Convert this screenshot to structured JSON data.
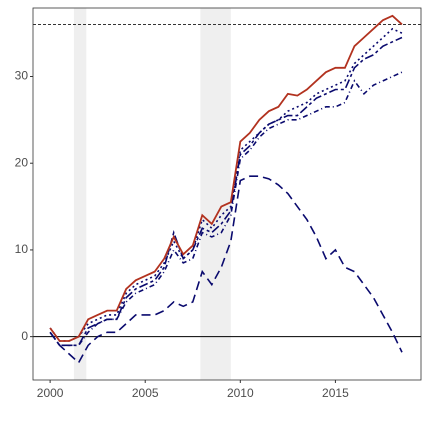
{
  "chart_data": {
    "type": "line",
    "x": [
      2000,
      2000.5,
      2001,
      2001.5,
      2002,
      2002.5,
      2003,
      2003.5,
      2004,
      2004.5,
      2005,
      2005.5,
      2006,
      2006.5,
      2007,
      2007.5,
      2008,
      2008.5,
      2009,
      2009.5,
      2010,
      2010.5,
      2011,
      2011.5,
      2012,
      2012.5,
      2013,
      2013.5,
      2014,
      2014.5,
      2015,
      2015.5,
      2016,
      2016.5,
      2017,
      2017.5,
      2018,
      2018.5
    ],
    "series": [
      {
        "color": "#b2321f",
        "dash": "none",
        "values": [
          1,
          -0.5,
          -0.5,
          0,
          2,
          2.5,
          3,
          3,
          5.5,
          6.5,
          7,
          7.5,
          9,
          11.5,
          9.5,
          10.5,
          14,
          13,
          15,
          15.5,
          22.5,
          23.5,
          25,
          26,
          26.5,
          28,
          27.8,
          28.5,
          29.5,
          30.5,
          31,
          31,
          33.5,
          34.5,
          35.5,
          36.5,
          37,
          36
        ]
      },
      {
        "color": "#0a0a6e",
        "dash": "2 3",
        "values": [
          1,
          -0.5,
          -0.5,
          0,
          1.5,
          2,
          2.5,
          2.5,
          5,
          6,
          6.5,
          7,
          8.5,
          11,
          9,
          10,
          13.5,
          12.5,
          14,
          15,
          21.5,
          22.5,
          23.5,
          24.5,
          25,
          26,
          26.5,
          27,
          28,
          28.5,
          29,
          29.5,
          31.5,
          32.5,
          33.5,
          34.5,
          35.5,
          35
        ]
      },
      {
        "color": "#0a0a6e",
        "dash": "9 3 3 3",
        "values": [
          0.5,
          -1,
          -1,
          -1,
          1,
          1.5,
          2,
          2,
          4.5,
          5.5,
          6,
          6.5,
          8,
          12,
          9,
          10,
          12.5,
          12,
          13,
          14.5,
          21,
          22,
          23.5,
          24.5,
          25,
          25.5,
          25.5,
          26.5,
          27.5,
          28,
          28.5,
          28.5,
          31,
          32,
          32.5,
          33.5,
          34,
          34.5
        ]
      },
      {
        "color": "#0a0a6e",
        "dash": "5 3 1 3",
        "values": [
          0.5,
          -1,
          -1,
          -1,
          0.5,
          1.5,
          2,
          2,
          4,
          5,
          5.5,
          6,
          7.5,
          10,
          8.5,
          9,
          12,
          11.5,
          12,
          14,
          20.5,
          21.5,
          23,
          24,
          24.5,
          25,
          25,
          25.5,
          26,
          26.5,
          26.5,
          27,
          29.5,
          28,
          29,
          29.5,
          30,
          30.5
        ]
      },
      {
        "color": "#0a0a6e",
        "dash": "9 5",
        "values": [
          0.5,
          -1,
          -2,
          -3,
          -1,
          0,
          0.5,
          0.5,
          1.5,
          2.5,
          2.5,
          2.5,
          3,
          4,
          3.5,
          4,
          7.5,
          6,
          8,
          11,
          18,
          18.5,
          18.5,
          18.2,
          17.5,
          16.5,
          15,
          13.5,
          11.5,
          9,
          10,
          8,
          7.5,
          6,
          4.5,
          2.5,
          0.5,
          -1.8
        ]
      }
    ],
    "reference_line": 36,
    "zero_line": 0,
    "shaded_ranges": [
      [
        2001.25,
        2001.9
      ],
      [
        2007.9,
        2009.5
      ]
    ],
    "xlim": [
      1999.1,
      2019.5
    ],
    "xticks": [
      2000,
      2005,
      2010,
      2015
    ],
    "ylim": [
      -5,
      37.9
    ],
    "yticks": [
      0,
      10,
      20,
      30
    ],
    "grid": false
  }
}
